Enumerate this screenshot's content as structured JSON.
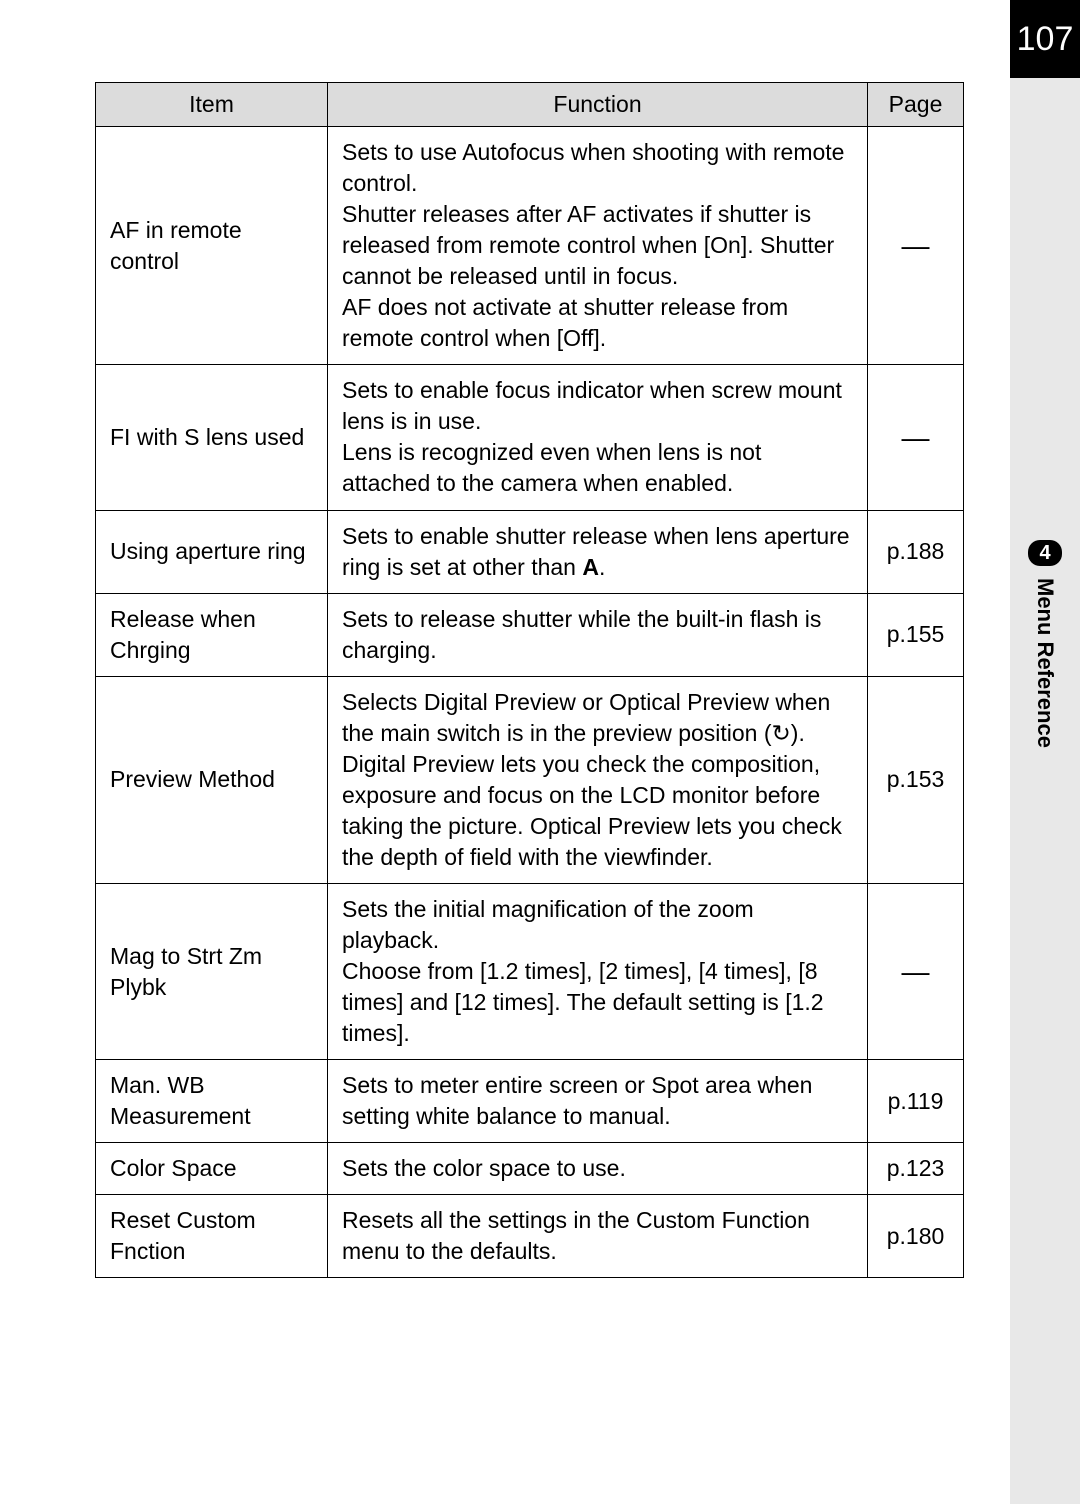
{
  "page_number": "107",
  "section": {
    "number": "4",
    "title": "Menu Reference"
  },
  "table": {
    "headers": {
      "item": "Item",
      "function": "Function",
      "page": "Page"
    },
    "rows": [
      {
        "item": "AF in remote control",
        "function": "Sets to use Autofocus when shooting with remote control.\nShutter releases after AF activates if shutter is released from remote control when [On]. Shutter cannot be released until in focus.\nAF does not activate at shutter release from remote control when [Off].",
        "page": "—"
      },
      {
        "item": "FI with S lens used",
        "function": "Sets to enable focus indicator when screw mount lens is in use.\nLens is recognized even when lens is not attached to the camera when enabled.",
        "page": "—"
      },
      {
        "item": "Using aperture ring",
        "function": "Sets to enable shutter release when lens aperture ring is set at other than A.",
        "page": "p.188"
      },
      {
        "item": "Release when Chrging",
        "function": "Sets to release shutter while the built-in flash is charging.",
        "page": "p.155"
      },
      {
        "item": "Preview Method",
        "function": "Selects Digital Preview or Optical Preview when the main switch is in the preview position (↻).\nDigital Preview lets you check the composition, exposure and focus on the LCD monitor before taking the picture. Optical Preview lets you check the depth of field with the viewfinder.",
        "page": "p.153"
      },
      {
        "item": "Mag to Strt Zm Plybk",
        "function": "Sets the initial magnification of the zoom playback.\nChoose from [1.2 times], [2 times], [4 times], [8 times] and [12 times]. The default setting is [1.2 times].",
        "page": "—"
      },
      {
        "item": "Man. WB Measurement",
        "function": "Sets to meter entire screen or Spot area when setting white balance to manual.",
        "page": "p.119"
      },
      {
        "item": "Color Space",
        "function": "Sets the color space to use.",
        "page": "p.123"
      },
      {
        "item": "Reset Custom Fnction",
        "function": "Resets all the settings in the Custom Function menu to the defaults.",
        "page": "p.180"
      }
    ]
  }
}
